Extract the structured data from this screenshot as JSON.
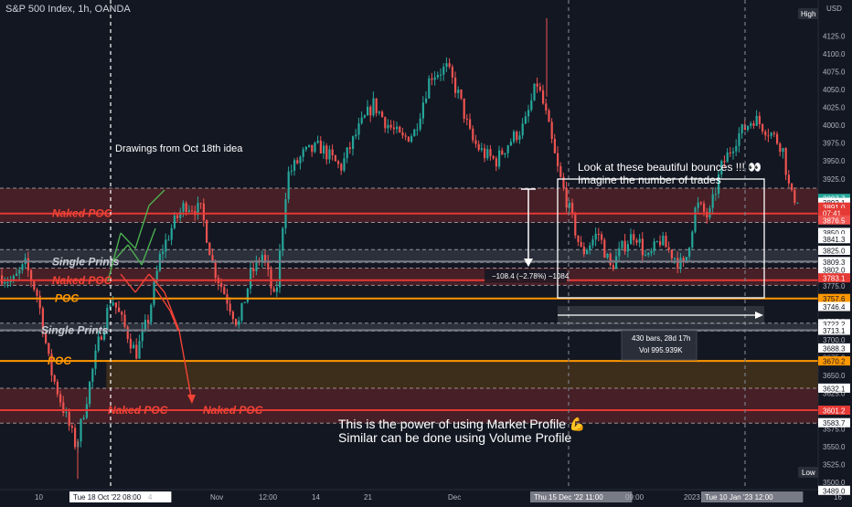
{
  "header": {
    "title": "S&P 500 Index, 1h, OANDA",
    "currency": "USD"
  },
  "axis_badges": {
    "high": "High",
    "low": "Low"
  },
  "colors": {
    "background": "#131722",
    "up": "#26a69a",
    "down": "#ef5350",
    "red_zone": "#e53935",
    "orange": "#ff9800",
    "white": "#ffffff"
  },
  "chart_data": {
    "type": "candlestick",
    "title": "S&P 500 Index, 1h, OANDA",
    "ylim": [
      3490,
      4160
    ],
    "price_ticks": [
      4125,
      4100,
      4075,
      4050,
      4025,
      4000,
      3975,
      3950,
      3925,
      3900,
      3875,
      3850,
      3825,
      3800,
      3775,
      3750,
      3725,
      3700,
      3675,
      3650,
      3625,
      3600,
      3575,
      3550,
      3525,
      3500
    ],
    "time_ticks": [
      "10",
      "Tue 18 Oct '22   08:00",
      "4",
      "Nov",
      "12:00",
      "14",
      "21",
      "Dec",
      "Thu 15 Dec '22   11:00",
      "09:00",
      "2023",
      "Tue 10 Jan '23   12:00",
      "16"
    ],
    "approx_close_path": [
      [
        0.0,
        3790
      ],
      [
        0.014,
        3780
      ],
      [
        0.03,
        3805
      ],
      [
        0.045,
        3760
      ],
      [
        0.06,
        3660
      ],
      [
        0.08,
        3590
      ],
      [
        0.092,
        3550
      ],
      [
        0.105,
        3620
      ],
      [
        0.12,
        3700
      ],
      [
        0.135,
        3760
      ],
      [
        0.15,
        3720
      ],
      [
        0.165,
        3680
      ],
      [
        0.18,
        3730
      ],
      [
        0.195,
        3820
      ],
      [
        0.21,
        3860
      ],
      [
        0.225,
        3890
      ],
      [
        0.245,
        3880
      ],
      [
        0.26,
        3800
      ],
      [
        0.275,
        3760
      ],
      [
        0.29,
        3720
      ],
      [
        0.305,
        3790
      ],
      [
        0.32,
        3820
      ],
      [
        0.335,
        3750
      ],
      [
        0.35,
        3930
      ],
      [
        0.37,
        3960
      ],
      [
        0.39,
        3970
      ],
      [
        0.415,
        3940
      ],
      [
        0.435,
        3990
      ],
      [
        0.455,
        4030
      ],
      [
        0.47,
        4005
      ],
      [
        0.49,
        3980
      ],
      [
        0.505,
        3990
      ],
      [
        0.525,
        4070
      ],
      [
        0.545,
        4080
      ],
      [
        0.56,
        4040
      ],
      [
        0.575,
        3980
      ],
      [
        0.59,
        3960
      ],
      [
        0.605,
        3950
      ],
      [
        0.62,
        3975
      ],
      [
        0.64,
        4000
      ],
      [
        0.655,
        4060
      ],
      [
        0.665,
        4020
      ],
      [
        0.68,
        3940
      ],
      [
        0.695,
        3880
      ],
      [
        0.71,
        3820
      ],
      [
        0.73,
        3850
      ],
      [
        0.745,
        3800
      ],
      [
        0.76,
        3830
      ],
      [
        0.775,
        3850
      ],
      [
        0.79,
        3810
      ],
      [
        0.805,
        3840
      ],
      [
        0.82,
        3820
      ],
      [
        0.835,
        3800
      ],
      [
        0.85,
        3890
      ],
      [
        0.865,
        3870
      ],
      [
        0.88,
        3940
      ],
      [
        0.9,
        3985
      ],
      [
        0.92,
        4010
      ],
      [
        0.94,
        3990
      ],
      [
        0.955,
        3970
      ],
      [
        0.965,
        3900
      ],
      [
        0.975,
        3898
      ]
    ],
    "horizontal_levels": [
      {
        "label": "Naked POC",
        "price": 3876.5,
        "kind": "zone",
        "from": 3864,
        "to": 3912,
        "color": "#e53935"
      },
      {
        "label": "Single Prints",
        "price": 3809.3,
        "kind": "zone",
        "from": 3808,
        "to": 3826,
        "color": "#787b86"
      },
      {
        "label": "Naked POC",
        "price": 3783.1,
        "kind": "zone",
        "from": 3776,
        "to": 3800,
        "color": "#e53935"
      },
      {
        "label": "POC",
        "price": 3757.6,
        "kind": "line",
        "color": "#ff9800"
      },
      {
        "label": "Single Prints",
        "price": 3713.1,
        "kind": "zone",
        "from": 3712,
        "to": 3723,
        "color": "#787b86"
      },
      {
        "label": "POC",
        "price": 3670.2,
        "kind": "line",
        "color": "#ff9800"
      },
      {
        "label": "Naked POC",
        "price": 3601.2,
        "kind": "zone",
        "from": 3583,
        "to": 3632,
        "color": "#e53935"
      }
    ],
    "price_labels": [
      {
        "text": "3897.7",
        "price": 3897.7,
        "bg": "#26a69a",
        "fg": "#ffffff"
      },
      {
        "text": "3892.1",
        "price": 3892.1,
        "bg": "#ffffff",
        "fg": "#131722"
      },
      {
        "text": "3891.0",
        "price": 3885.5,
        "bg": "#e53935",
        "fg": "#ffffff"
      },
      {
        "text": "07:41",
        "price": 3877.5,
        "bg": "#e53935",
        "fg": "#ffffff"
      },
      {
        "text": "3876.5",
        "price": 3867.5,
        "bg": "#ef5350",
        "fg": "#ffffff"
      },
      {
        "text": "3850.0",
        "price": 3850.0,
        "bg": "#ffffff",
        "fg": "#131722"
      },
      {
        "text": "3841.3",
        "price": 3841.3,
        "bg": "#ffffff",
        "fg": "#131722"
      },
      {
        "text": "3825.0",
        "price": 3825.0,
        "bg": "#ffffff",
        "fg": "#131722"
      },
      {
        "text": "3809.3",
        "price": 3809.3,
        "bg": "#ffffff",
        "fg": "#131722"
      },
      {
        "text": "3802.0",
        "price": 3798.0,
        "bg": "#ffffff",
        "fg": "#131722"
      },
      {
        "text": "3783.1",
        "price": 3786.5,
        "bg": "#e53935",
        "fg": "#ffffff"
      },
      {
        "text": "3757.6",
        "price": 3757.6,
        "bg": "#ff9800",
        "fg": "#131722"
      },
      {
        "text": "3746.4",
        "price": 3746.4,
        "bg": "#ffffff",
        "fg": "#131722"
      },
      {
        "text": "3722.2",
        "price": 3722.2,
        "bg": "#ffffff",
        "fg": "#131722"
      },
      {
        "text": "3713.1",
        "price": 3713.1,
        "bg": "#ffffff",
        "fg": "#131722"
      },
      {
        "text": "3688.3",
        "price": 3688.3,
        "bg": "#ffffff",
        "fg": "#131722"
      },
      {
        "text": "3670.2",
        "price": 3670.2,
        "bg": "#ff9800",
        "fg": "#131722"
      },
      {
        "text": "3632.1",
        "price": 3632.1,
        "bg": "#ffffff",
        "fg": "#131722"
      },
      {
        "text": "3601.2",
        "price": 3601.2,
        "bg": "#e53935",
        "fg": "#ffffff"
      },
      {
        "text": "3583.7",
        "price": 3583.7,
        "bg": "#ffffff",
        "fg": "#131722"
      },
      {
        "text": "3489.0",
        "price": 3489.0,
        "bg": "#ffffff",
        "fg": "#131722"
      }
    ],
    "measurement": {
      "range": "−108.4 (−2.78%) −1084",
      "bars": "430 bars, 28d 17h",
      "volume": "Vol 995.939K"
    },
    "annotations": {
      "drawings_note": "Drawings from Oct 18th idea",
      "bounces_line1": "Look at these beautiful bounces !!! 👀",
      "bounces_line2": "Imagine the number of trades",
      "power_line1": "This is the power of using Market Profile 💪",
      "power_line2": "Similar can be done using Volume Profile"
    }
  }
}
